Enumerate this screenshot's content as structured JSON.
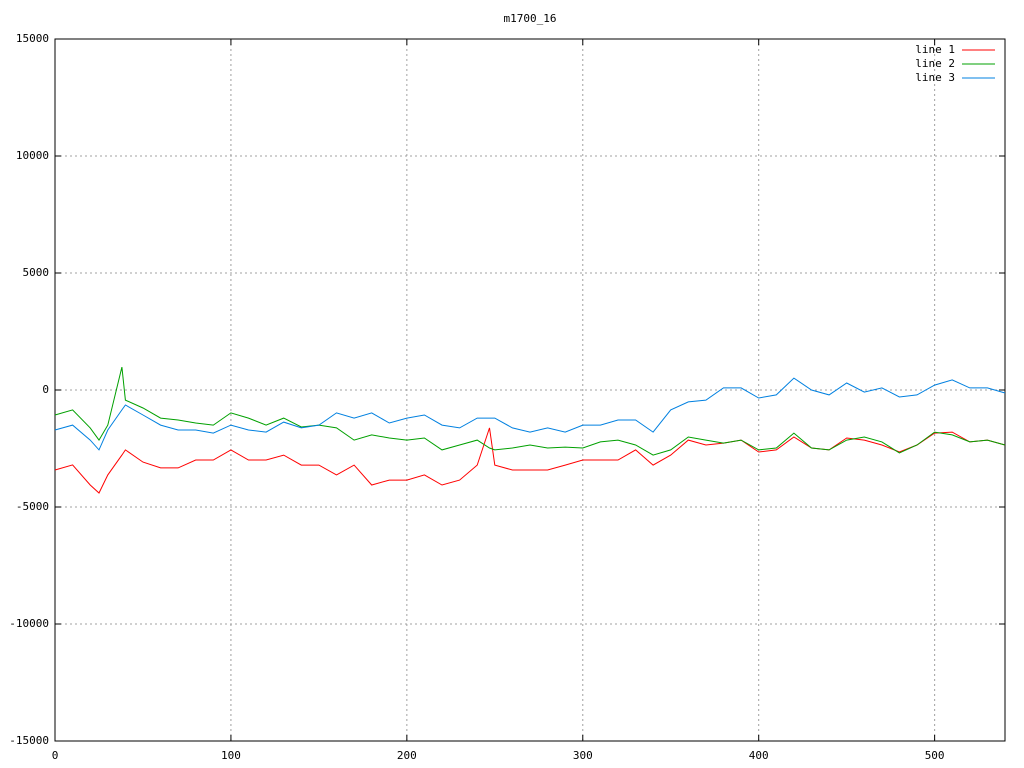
{
  "chart_data": {
    "type": "line",
    "title": "m1700_16",
    "x": [
      0,
      10,
      20,
      25,
      30,
      38,
      40,
      50,
      60,
      70,
      80,
      90,
      100,
      110,
      120,
      130,
      140,
      150,
      160,
      170,
      180,
      190,
      200,
      210,
      220,
      230,
      240,
      247,
      250,
      260,
      270,
      280,
      290,
      300,
      310,
      320,
      330,
      340,
      350,
      360,
      370,
      380,
      390,
      400,
      410,
      420,
      430,
      440,
      450,
      460,
      470,
      480,
      490,
      500,
      510,
      520,
      530,
      540
    ],
    "series": [
      {
        "name": "line 1",
        "color": "#ff0000",
        "values": [
          -3420,
          -3200,
          -4060,
          -4400,
          -3630,
          -2780,
          -2560,
          -3080,
          -3330,
          -3330,
          -2990,
          -2990,
          -2560,
          -2990,
          -2990,
          -2780,
          -3210,
          -3210,
          -3630,
          -3210,
          -4060,
          -3850,
          -3850,
          -3630,
          -4060,
          -3850,
          -3210,
          -1620,
          -3210,
          -3420,
          -3420,
          -3420,
          -3210,
          -2990,
          -2990,
          -2990,
          -2560,
          -3210,
          -2780,
          -2140,
          -2350,
          -2270,
          -2140,
          -2650,
          -2560,
          -2010,
          -2480,
          -2560,
          -2050,
          -2140,
          -2350,
          -2650,
          -2350,
          -1840,
          -1800,
          -2220,
          -2140,
          -2350
        ]
      },
      {
        "name": "line 2",
        "color": "#00a000",
        "values": [
          -1070,
          -850,
          -1620,
          -2140,
          -1500,
          980,
          -430,
          -770,
          -1200,
          -1280,
          -1410,
          -1500,
          -980,
          -1200,
          -1500,
          -1200,
          -1580,
          -1500,
          -1620,
          -2140,
          -1920,
          -2050,
          -2140,
          -2050,
          -2560,
          -2350,
          -2140,
          -2480,
          -2560,
          -2480,
          -2350,
          -2480,
          -2440,
          -2480,
          -2220,
          -2140,
          -2350,
          -2780,
          -2560,
          -2010,
          -2140,
          -2270,
          -2140,
          -2560,
          -2480,
          -1840,
          -2480,
          -2560,
          -2140,
          -2010,
          -2220,
          -2690,
          -2350,
          -1800,
          -1920,
          -2220,
          -2140,
          -2350
        ]
      },
      {
        "name": "line 3",
        "color": "#0080e0",
        "values": [
          -1710,
          -1500,
          -2140,
          -2560,
          -1710,
          -850,
          -640,
          -1070,
          -1500,
          -1710,
          -1710,
          -1840,
          -1500,
          -1710,
          -1800,
          -1370,
          -1620,
          -1500,
          -980,
          -1200,
          -980,
          -1410,
          -1200,
          -1070,
          -1500,
          -1620,
          -1200,
          -1200,
          -1200,
          -1620,
          -1800,
          -1620,
          -1800,
          -1500,
          -1500,
          -1280,
          -1280,
          -1800,
          -850,
          -510,
          -430,
          90,
          90,
          -340,
          -210,
          510,
          0,
          -210,
          300,
          -90,
          90,
          -300,
          -210,
          210,
          430,
          90,
          90,
          -130
        ]
      }
    ],
    "xlim": [
      0,
      540
    ],
    "xticks": [
      0,
      100,
      200,
      300,
      400,
      500
    ],
    "ylim": [
      -15000,
      15000
    ],
    "yticks": [
      -15000,
      -10000,
      -5000,
      0,
      5000,
      10000,
      15000
    ],
    "grid": true,
    "legend": "top-right"
  }
}
